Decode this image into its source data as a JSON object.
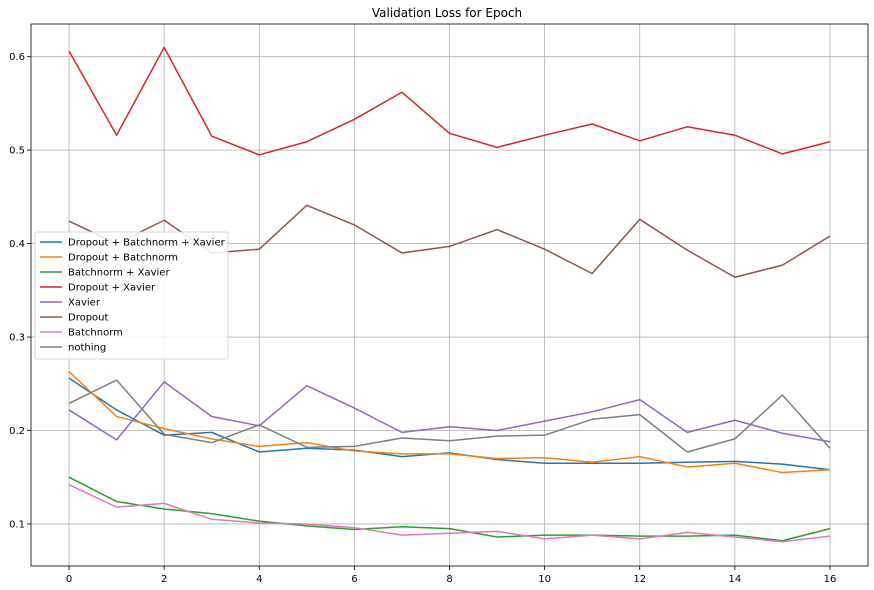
{
  "chart_data": {
    "type": "line",
    "title": "Validation Loss for Epoch",
    "xlabel": "",
    "ylabel": "",
    "xlim": [
      -0.8,
      16.8
    ],
    "ylim": [
      0.055,
      0.635
    ],
    "xticks": [
      0,
      2,
      4,
      6,
      8,
      10,
      12,
      14,
      16
    ],
    "yticks": [
      0.1,
      0.2,
      0.3,
      0.4,
      0.5,
      0.6
    ],
    "ytick_labels": [
      "0.1",
      "0.2",
      "0.3",
      "0.4",
      "0.5",
      "0.6"
    ],
    "grid": true,
    "legend_position": "center-left",
    "x": [
      0,
      1,
      2,
      3,
      4,
      5,
      6,
      7,
      8,
      9,
      10,
      11,
      12,
      13,
      14,
      15,
      16
    ],
    "series": [
      {
        "name": "Dropout + Batchnorm + Xavier",
        "color": "#1f77b4",
        "values": [
          0.256,
          0.222,
          0.195,
          0.198,
          0.177,
          0.181,
          0.179,
          0.172,
          0.176,
          0.169,
          0.165,
          0.165,
          0.165,
          0.166,
          0.167,
          0.164,
          0.158
        ]
      },
      {
        "name": "Dropout + Batchnorm",
        "color": "#ff7f0e",
        "values": [
          0.263,
          0.215,
          0.202,
          0.191,
          0.183,
          0.187,
          0.178,
          0.175,
          0.175,
          0.17,
          0.171,
          0.166,
          0.172,
          0.161,
          0.165,
          0.155,
          0.158
        ]
      },
      {
        "name": "Batchnorm + Xavier",
        "color": "#2ca02c",
        "values": [
          0.15,
          0.124,
          0.116,
          0.111,
          0.103,
          0.098,
          0.094,
          0.097,
          0.095,
          0.086,
          0.088,
          0.088,
          0.087,
          0.087,
          0.088,
          0.082,
          0.095
        ]
      },
      {
        "name": "Dropout + Xavier",
        "color": "#d62728",
        "values": [
          0.606,
          0.516,
          0.61,
          0.515,
          0.495,
          0.509,
          0.533,
          0.562,
          0.518,
          0.503,
          0.516,
          0.528,
          0.51,
          0.525,
          0.516,
          0.496,
          0.509
        ]
      },
      {
        "name": "Xavier",
        "color": "#9467bd",
        "values": [
          0.222,
          0.19,
          0.252,
          0.215,
          0.205,
          0.248,
          0.224,
          0.198,
          0.204,
          0.2,
          0.21,
          0.22,
          0.233,
          0.198,
          0.211,
          0.197,
          0.188
        ]
      },
      {
        "name": "Dropout",
        "color": "#8c564b",
        "values": [
          0.424,
          0.4,
          0.425,
          0.39,
          0.394,
          0.441,
          0.42,
          0.39,
          0.397,
          0.415,
          0.394,
          0.368,
          0.426,
          0.393,
          0.364,
          0.377,
          0.408
        ]
      },
      {
        "name": "Batchnorm",
        "color": "#e377c2",
        "values": [
          0.142,
          0.118,
          0.122,
          0.105,
          0.101,
          0.1,
          0.096,
          0.088,
          0.09,
          0.092,
          0.084,
          0.088,
          0.084,
          0.091,
          0.086,
          0.081,
          0.087
        ]
      },
      {
        "name": "nothing",
        "color": "#7f7f7f",
        "values": [
          0.229,
          0.254,
          0.196,
          0.187,
          0.206,
          0.182,
          0.183,
          0.192,
          0.189,
          0.194,
          0.195,
          0.212,
          0.217,
          0.177,
          0.191,
          0.238,
          0.181
        ]
      }
    ]
  }
}
